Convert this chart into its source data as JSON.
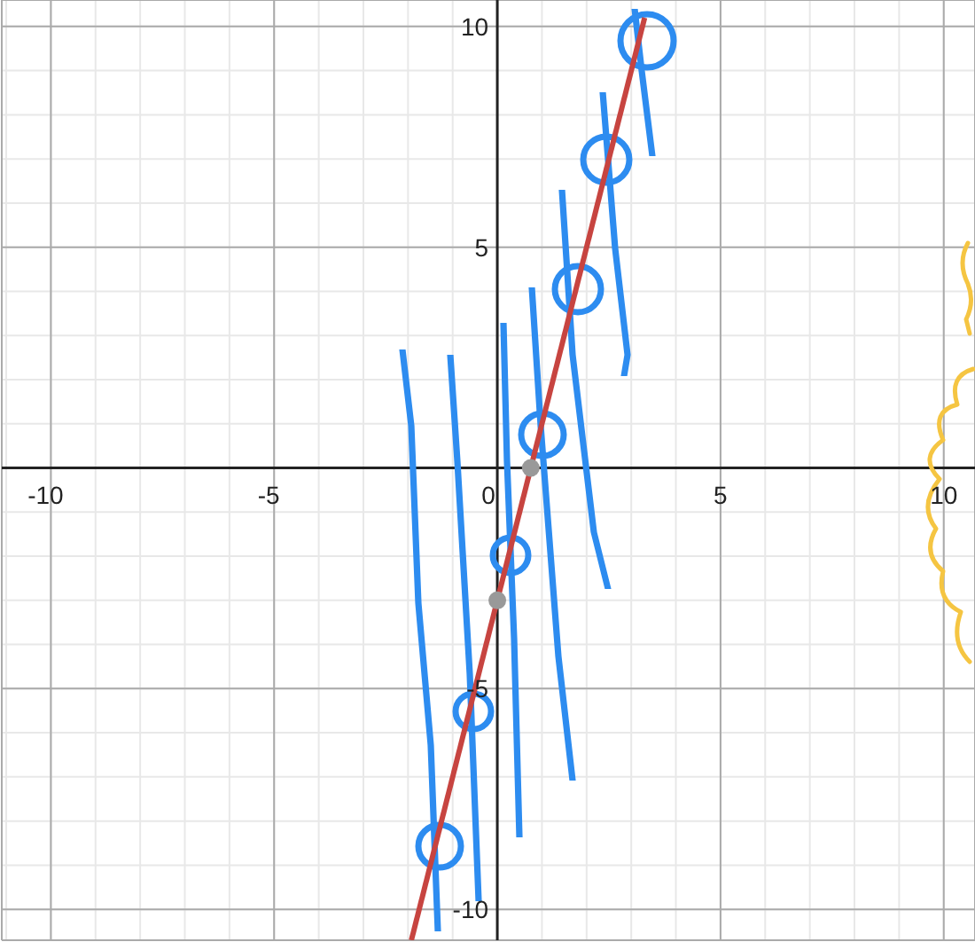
{
  "chart_data": {
    "type": "line",
    "xlim": [
      -11.1,
      10.7
    ],
    "ylim": [
      -10.7,
      10.6
    ],
    "xticks": [
      -10,
      -5,
      0,
      5,
      10
    ],
    "yticks": [
      -10,
      -5,
      5,
      10
    ],
    "grid": true,
    "series": [
      {
        "type": "line",
        "color": "#c74440",
        "x": [
          -1.925,
          3.3
        ],
        "values": [
          -10.7,
          10.2
        ]
      },
      {
        "type": "scatter",
        "color": "#999999",
        "x": [
          0,
          0.75
        ],
        "values": [
          -3,
          0
        ]
      }
    ]
  }
}
